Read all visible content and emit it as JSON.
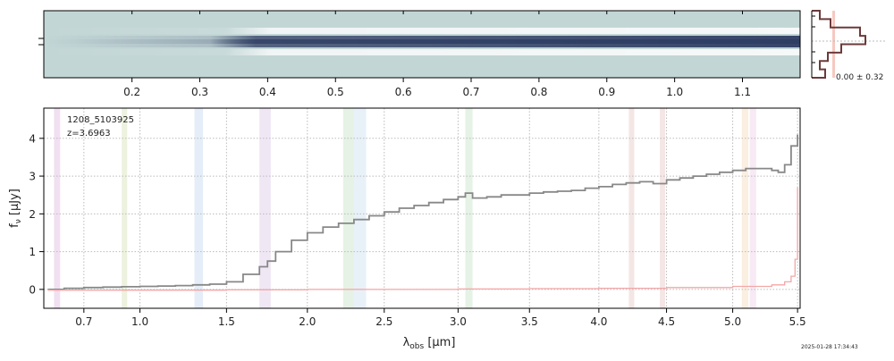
{
  "chart_data": [
    {
      "type": "heatmap",
      "panel": "2d-spectrum",
      "top_ticks": [
        "0.2",
        "0.3",
        "0.4",
        "0.5",
        "0.6",
        "0.7",
        "0.8",
        "0.9",
        "1.0",
        "1.1"
      ],
      "colors": {
        "background": "#c3d6d6",
        "trace": "#2e3d63"
      }
    },
    {
      "type": "line",
      "panel": "1d-spectrum",
      "object_id": "1208_5103925",
      "redshift_label": "z=3.6963",
      "xlabel": "λobs [μm]",
      "ylabel": "fν [μJy]",
      "x_ticks": [
        "0.7",
        "1.0",
        "1.5",
        "2.0",
        "2.5",
        "3.0",
        "3.5",
        "4.0",
        "4.5",
        "5.0",
        "5.5"
      ],
      "y_ticks": [
        "0",
        "1",
        "2",
        "3",
        "4"
      ],
      "ylim": [
        -0.5,
        4.8
      ],
      "grid": true,
      "series": [
        {
          "color": "#888888",
          "x": [
            0.52,
            0.6,
            0.7,
            0.8,
            0.9,
            1.0,
            1.1,
            1.2,
            1.3,
            1.4,
            1.5,
            1.6,
            1.7,
            1.75,
            1.8,
            1.9,
            2.0,
            2.1,
            2.2,
            2.3,
            2.4,
            2.5,
            2.6,
            2.7,
            2.8,
            2.9,
            3.0,
            3.05,
            3.1,
            3.2,
            3.3,
            3.4,
            3.5,
            3.6,
            3.7,
            3.8,
            3.9,
            4.0,
            4.1,
            4.2,
            4.3,
            4.4,
            4.5,
            4.6,
            4.7,
            4.8,
            4.9,
            5.0,
            5.1,
            5.2,
            5.3,
            5.35,
            5.4,
            5.45,
            5.5
          ],
          "y": [
            0.0,
            0.03,
            0.05,
            0.06,
            0.07,
            0.08,
            0.09,
            0.1,
            0.12,
            0.14,
            0.2,
            0.4,
            0.6,
            0.75,
            1.0,
            1.3,
            1.5,
            1.65,
            1.75,
            1.85,
            1.95,
            2.05,
            2.15,
            2.22,
            2.3,
            2.38,
            2.45,
            2.55,
            2.42,
            2.45,
            2.5,
            2.5,
            2.55,
            2.58,
            2.6,
            2.62,
            2.68,
            2.72,
            2.78,
            2.82,
            2.85,
            2.8,
            2.9,
            2.95,
            3.0,
            3.05,
            3.1,
            3.15,
            3.2,
            3.2,
            3.15,
            3.1,
            3.3,
            3.8,
            4.1
          ]
        },
        {
          "color": "#f4a6a6",
          "x": [
            0.52,
            1.0,
            1.5,
            2.0,
            2.5,
            3.0,
            3.5,
            4.0,
            4.5,
            5.0,
            5.3,
            5.4,
            5.45,
            5.48,
            5.5
          ],
          "y": [
            -0.02,
            -0.02,
            -0.01,
            0.0,
            0.0,
            0.01,
            0.02,
            0.03,
            0.05,
            0.08,
            0.12,
            0.2,
            0.35,
            0.8,
            2.7
          ]
        }
      ],
      "bands": [
        {
          "x0": 0.55,
          "x1": 0.58,
          "color": "#e6c6e6"
        },
        {
          "x0": 0.9,
          "x1": 0.93,
          "color": "#dfe8c4"
        },
        {
          "x0": 1.31,
          "x1": 1.36,
          "color": "#cfe0f2"
        },
        {
          "x0": 1.7,
          "x1": 1.77,
          "color": "#e4d4ec"
        },
        {
          "x0": 2.23,
          "x1": 2.3,
          "color": "#cfe8cf"
        },
        {
          "x0": 2.3,
          "x1": 2.38,
          "color": "#d6e6f2"
        },
        {
          "x0": 3.05,
          "x1": 3.1,
          "color": "#cfe8cf"
        },
        {
          "x0": 4.22,
          "x1": 4.26,
          "color": "#ecd2d2"
        },
        {
          "x0": 4.45,
          "x1": 4.49,
          "color": "#ecd2d2"
        },
        {
          "x0": 5.07,
          "x1": 5.12,
          "color": "#f8e2c8"
        },
        {
          "x0": 5.13,
          "x1": 5.18,
          "color": "#f0d8ec"
        }
      ]
    },
    {
      "type": "bar",
      "panel": "side-histogram",
      "label": "0.00 ± 0.32",
      "values": [
        0.15,
        0.35,
        0.9,
        1.0,
        0.55,
        0.3,
        0.15,
        0.25
      ]
    }
  ],
  "footer": {
    "timestamp": "2025-01-28 17:34:43"
  }
}
